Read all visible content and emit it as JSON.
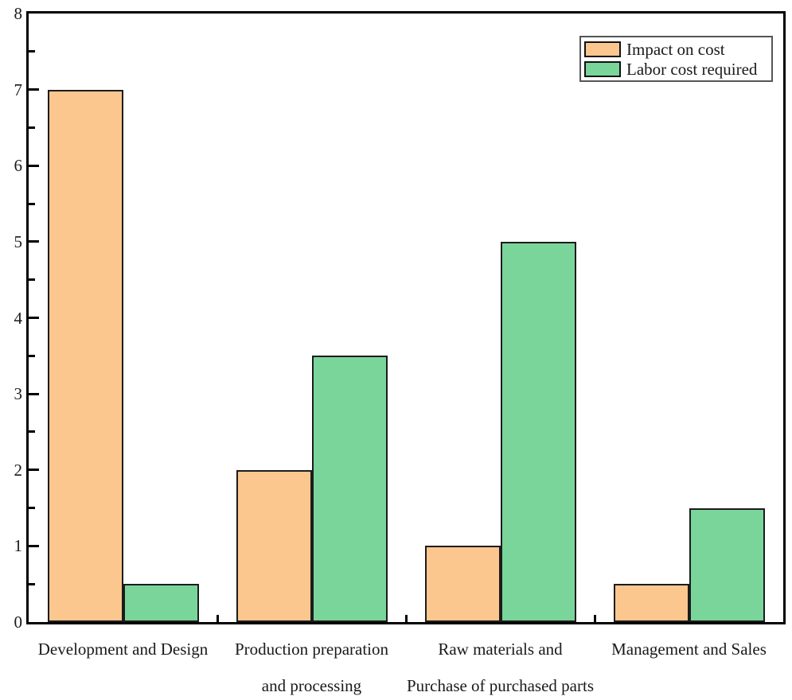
{
  "chart_data": {
    "type": "bar",
    "title": "",
    "xlabel": "",
    "ylabel": "",
    "categories": [
      [
        "Development and Design"
      ],
      [
        "Production preparation",
        "and processing"
      ],
      [
        "Raw materials and",
        "Purchase of purchased parts"
      ],
      [
        "Management and Sales"
      ]
    ],
    "series": [
      {
        "name": "Impact on cost",
        "color": "#FBC78F",
        "values": [
          7,
          2,
          1,
          0.5
        ]
      },
      {
        "name": "Labor cost required",
        "color": "#7AD59B",
        "values": [
          0.5,
          3.5,
          5,
          1.5
        ]
      }
    ],
    "ylim": [
      0,
      8
    ],
    "y_major_ticks": [
      0,
      1,
      2,
      3,
      4,
      5,
      6,
      7,
      8
    ],
    "y_minor_step": 0.5,
    "grid": false,
    "legend_position": "top-right",
    "frame": "full-box",
    "bar_border_color": "#1c1c1c",
    "axis_color": "#000000"
  }
}
